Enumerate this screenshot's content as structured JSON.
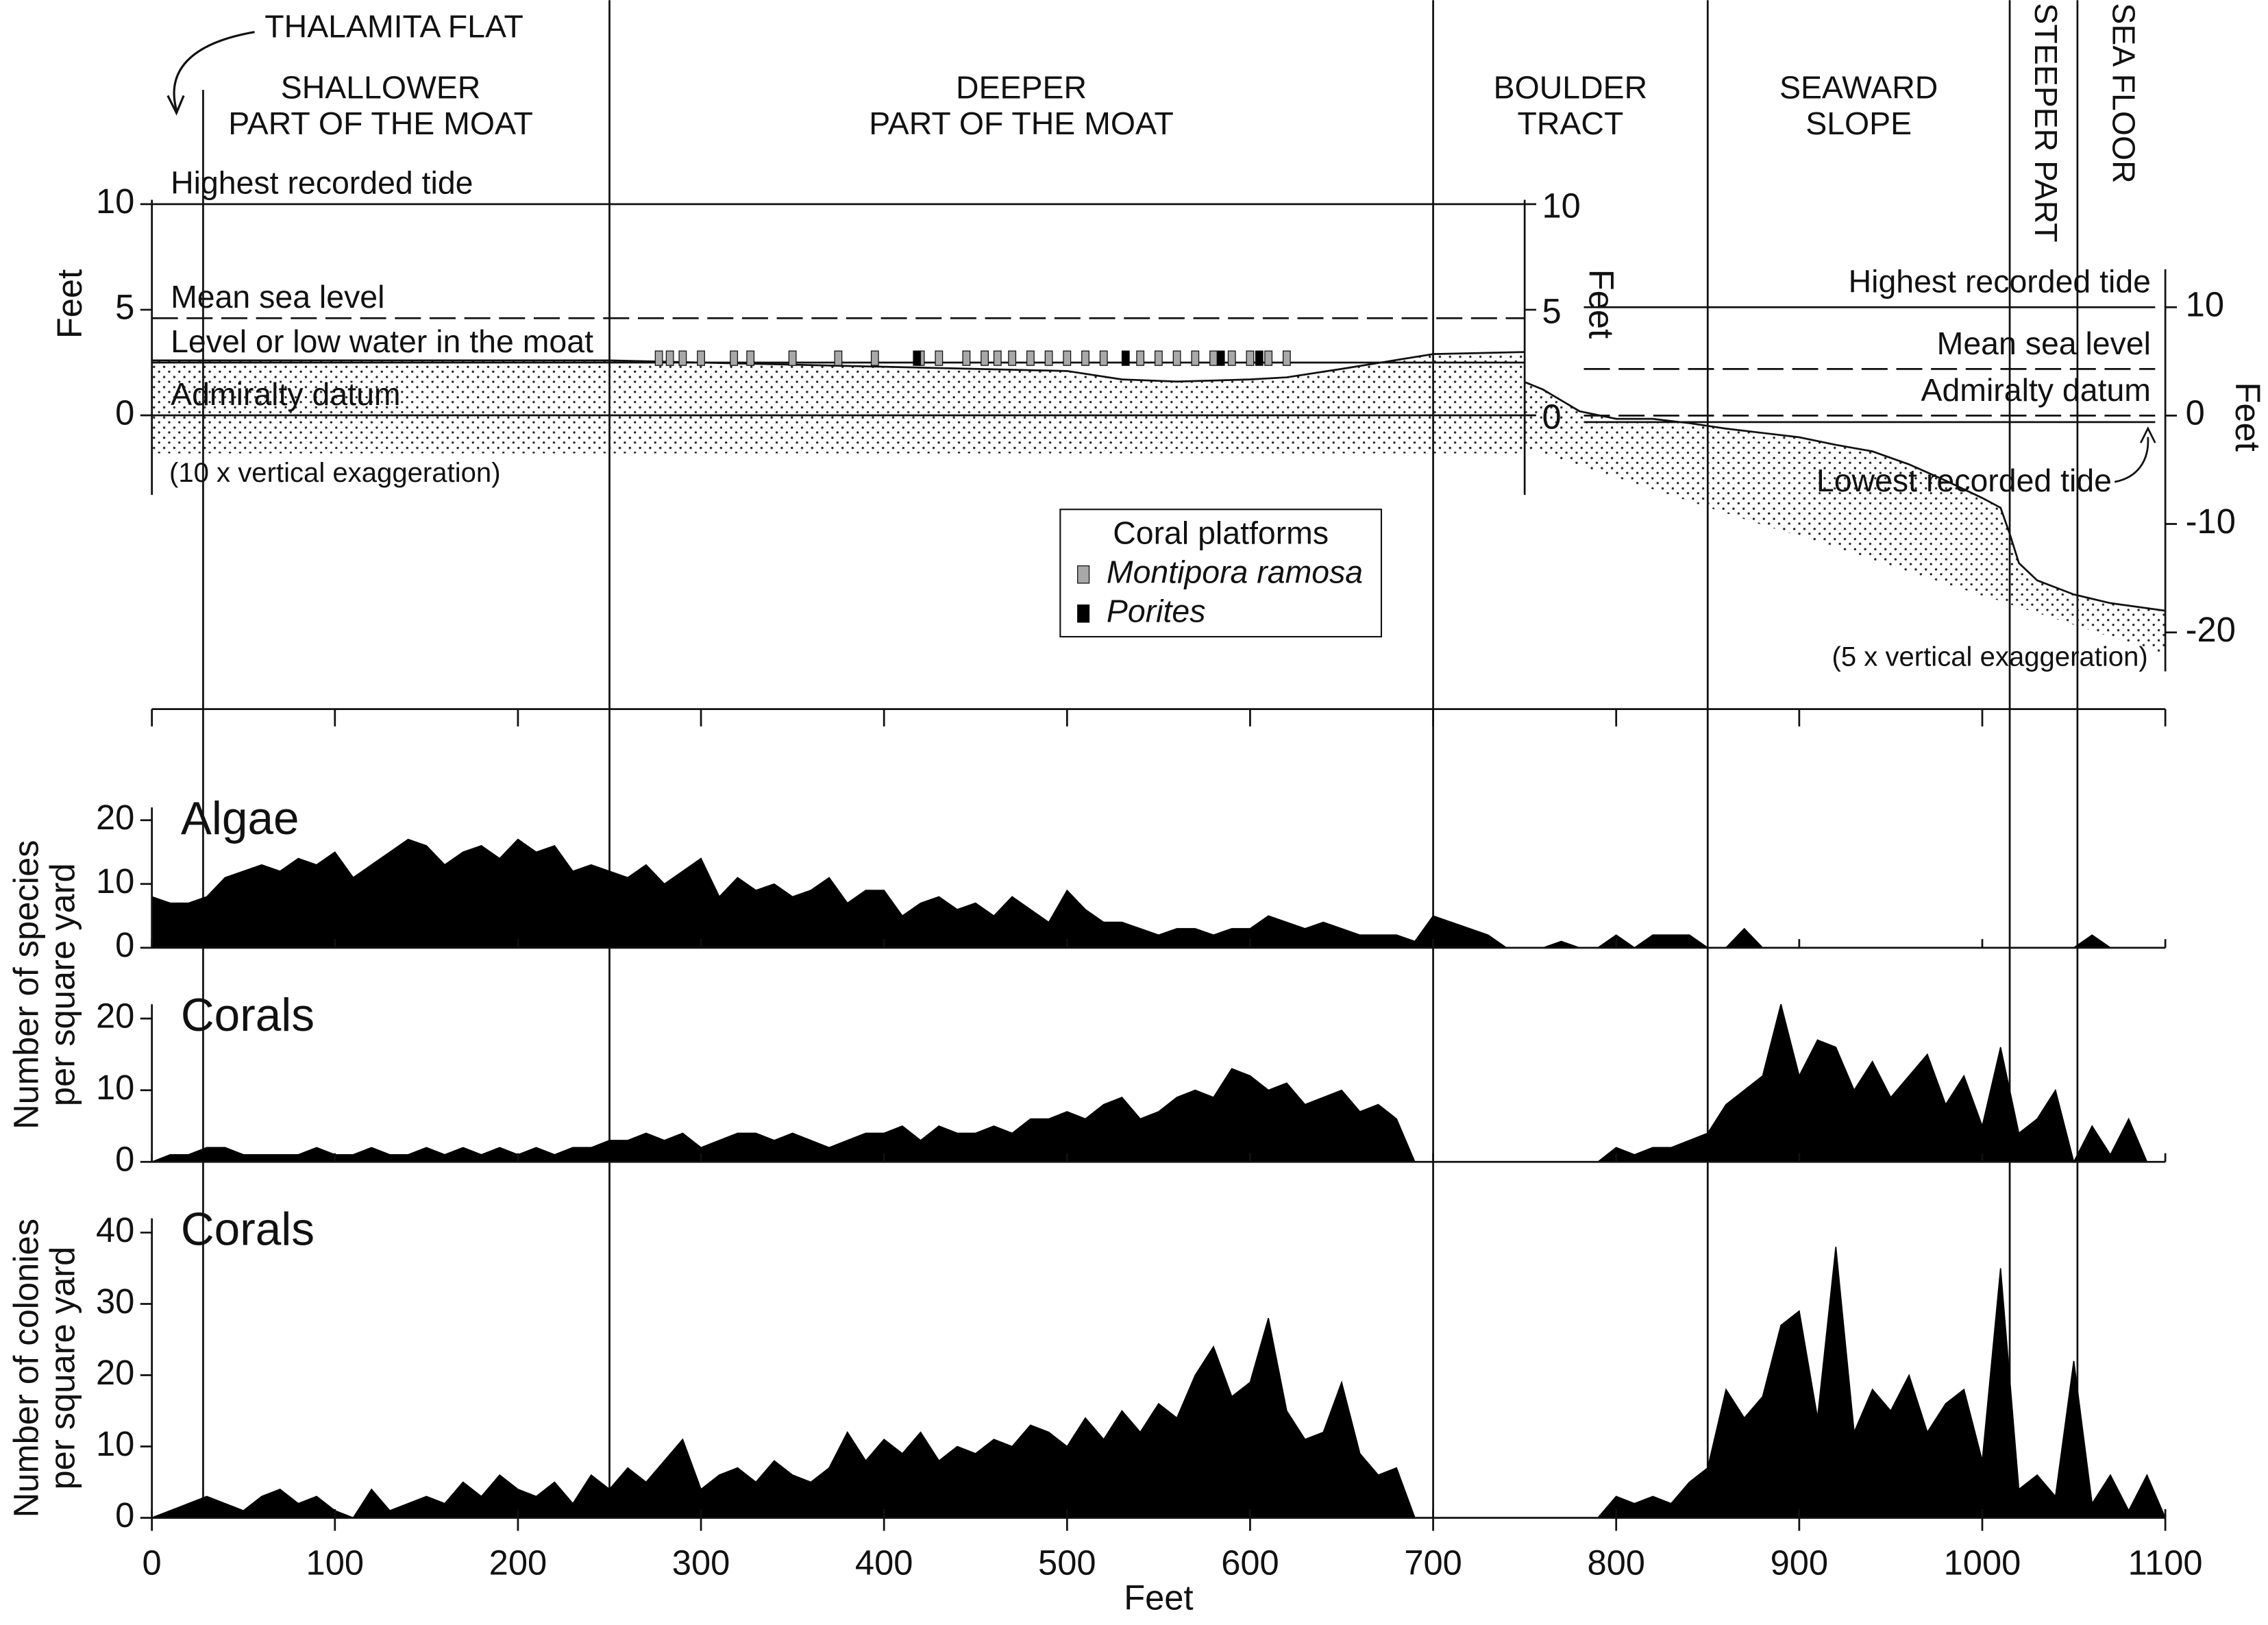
{
  "chart_data": [
    {
      "type": "profile",
      "annotation": "THALAMITA FLAT",
      "thalamita_x": 28,
      "zones": [
        {
          "lines": [
            "SHALLOWER",
            "PART OF THE MOAT"
          ]
        },
        {
          "lines": [
            "DEEPER",
            "PART OF THE MOAT"
          ]
        },
        {
          "lines": [
            "BOULDER",
            "TRACT"
          ]
        },
        {
          "lines": [
            "SEAWARD",
            "SLOPE"
          ]
        },
        {
          "lines": [
            "STEEPER PART"
          ]
        },
        {
          "lines": [
            "SEA FLOOR"
          ]
        }
      ],
      "boundaries": [
        250,
        700,
        850,
        1015,
        1052
      ],
      "xlim": [
        0,
        1100
      ],
      "ylabel": "Feet",
      "ylim": [
        -4,
        10
      ],
      "yticks": [
        0,
        5,
        10
      ],
      "y2label": "Feet",
      "y2lim": [
        -23.6,
        13.5
      ],
      "y2ticks": [
        10,
        0,
        -10,
        -20
      ],
      "exaggeration": "(10 x vertical exaggeration)",
      "exaggeration_y2": "(5 x vertical exaggeration)",
      "levels": [
        {
          "name": "Highest recorded tide",
          "value": 10,
          "dashed": false
        },
        {
          "name": "Mean sea level",
          "value": 4.6,
          "dashed": true
        },
        {
          "name": "Level or low water in the moat",
          "value": 2.5,
          "dashed": false
        },
        {
          "name": "Admiralty datum",
          "value": 0,
          "dashed": false
        }
      ],
      "levels_y2": [
        {
          "name": "Highest recorded tide",
          "value": 10,
          "dashed": false
        },
        {
          "name": "Mean sea level",
          "value": 4.3,
          "dashed": true
        },
        {
          "name": "Admiralty datum",
          "value": 0,
          "dashed": true
        },
        {
          "name": "Lowest recorded tide",
          "value": -0.6,
          "dashed": false
        }
      ],
      "ground": {
        "x": [
          0,
          100,
          200,
          250,
          300,
          400,
          500,
          530,
          560,
          600,
          620,
          650,
          700,
          750
        ],
        "surface": [
          2.6,
          2.6,
          2.6,
          2.6,
          2.5,
          2.3,
          2.1,
          1.7,
          1.6,
          1.7,
          1.8,
          2.2,
          2.9,
          3.0
        ],
        "base": [
          -1.8,
          -1.8,
          -1.8,
          -1.8,
          -1.8,
          -1.8,
          -1.8,
          -1.8,
          -1.8,
          -1.8,
          -1.8,
          -1.8,
          -1.8,
          -1.8
        ]
      },
      "ground_y2": {
        "x": [
          750,
          760,
          780,
          800,
          820,
          840,
          860,
          880,
          900,
          920,
          940,
          960,
          980,
          1000,
          1010,
          1015,
          1020,
          1030,
          1050,
          1070,
          1100
        ],
        "surface": [
          3.1,
          2.4,
          0.4,
          -0.3,
          -0.3,
          -0.7,
          -1.2,
          -1.6,
          -2,
          -2.7,
          -3.3,
          -4.5,
          -6,
          -7.6,
          -8.5,
          -10.9,
          -13.6,
          -15.2,
          -16.5,
          -17.3,
          -18
        ],
        "base": [
          -3,
          -3.5,
          -4.6,
          -5.7,
          -6.8,
          -7.9,
          -9,
          -10.1,
          -11.1,
          -12.2,
          -13.3,
          -14.4,
          -15.5,
          -16.6,
          -17.1,
          -17.4,
          -17.7,
          -18.2,
          -19.3,
          -20.4,
          -22
        ]
      },
      "legend_title": "Coral platforms",
      "platforms": [
        {
          "name": "Montipora ramosa",
          "color": "#a8a8a8",
          "x": [
            277,
            283,
            290,
            300,
            318,
            327,
            350,
            375,
            395,
            420,
            430,
            445,
            455,
            462,
            470,
            480,
            490,
            500,
            510,
            520,
            540,
            550,
            560,
            570,
            580,
            590,
            600,
            610,
            620
          ]
        },
        {
          "name": "Porites",
          "color": "#000000",
          "x": [
            418,
            532,
            584,
            605
          ]
        }
      ]
    },
    {
      "type": "area",
      "x": [
        0,
        10,
        20,
        30,
        40,
        50,
        60,
        70,
        80,
        90,
        100,
        110,
        120,
        130,
        140,
        150,
        160,
        170,
        180,
        190,
        200,
        210,
        220,
        230,
        240,
        250,
        260,
        270,
        280,
        290,
        300,
        310,
        320,
        330,
        340,
        350,
        360,
        370,
        380,
        390,
        400,
        410,
        420,
        430,
        440,
        450,
        460,
        470,
        480,
        490,
        500,
        510,
        520,
        530,
        540,
        550,
        560,
        570,
        580,
        590,
        600,
        610,
        620,
        630,
        640,
        650,
        660,
        670,
        680,
        690,
        700,
        710,
        720,
        730,
        740,
        750,
        760,
        770,
        780,
        790,
        800,
        810,
        820,
        830,
        840,
        850,
        860,
        870,
        880,
        890,
        900,
        910,
        920,
        930,
        940,
        950,
        960,
        970,
        980,
        990,
        1000,
        1010,
        1020,
        1030,
        1040,
        1050,
        1060,
        1070,
        1080,
        1090,
        1100
      ],
      "xlim": [
        0,
        1100
      ],
      "xticks": [
        0,
        100,
        200,
        300,
        400,
        500,
        600,
        700,
        800,
        900,
        1000,
        1100
      ],
      "xlabel": "Feet",
      "ylabels": [
        [
          "Number of species",
          "per square yard"
        ],
        [
          "Number of colonies",
          "per square yard"
        ]
      ],
      "series": [
        {
          "name": "Algae",
          "color": "#000000",
          "ylim": [
            0,
            22
          ],
          "yticks": [
            0,
            10,
            20
          ],
          "values": [
            8,
            7,
            7,
            8,
            11,
            12,
            13,
            12,
            14,
            13,
            15,
            11,
            13,
            15,
            17,
            16,
            13,
            15,
            16,
            14,
            17,
            15,
            16,
            12,
            13,
            12,
            11,
            13,
            10,
            12,
            14,
            8,
            11,
            9,
            10,
            8,
            9,
            11,
            7,
            9,
            9,
            5,
            7,
            8,
            6,
            7,
            5,
            8,
            6,
            4,
            9,
            6,
            4,
            4,
            3,
            2,
            3,
            3,
            2,
            3,
            3,
            5,
            4,
            3,
            4,
            3,
            2,
            2,
            2,
            1,
            5,
            4,
            3,
            2,
            0,
            0,
            0,
            1,
            0,
            0,
            2,
            0,
            2,
            2,
            2,
            0,
            0,
            3,
            0,
            0,
            0,
            0,
            0,
            0,
            0,
            0,
            0,
            0,
            0,
            0,
            0,
            0,
            0,
            0,
            0,
            0,
            2,
            0,
            0,
            0,
            0
          ]
        },
        {
          "name": "Corals",
          "color": "#000000",
          "ylim": [
            0,
            22
          ],
          "yticks": [
            0,
            10,
            20
          ],
          "values": [
            0,
            1,
            1,
            2,
            2,
            1,
            1,
            1,
            1,
            2,
            1,
            1,
            2,
            1,
            1,
            2,
            1,
            2,
            1,
            2,
            1,
            2,
            1,
            2,
            2,
            3,
            3,
            4,
            3,
            4,
            2,
            3,
            4,
            4,
            3,
            4,
            3,
            2,
            3,
            4,
            4,
            5,
            3,
            5,
            4,
            4,
            5,
            4,
            6,
            6,
            7,
            6,
            8,
            9,
            6,
            7,
            9,
            10,
            9,
            13,
            12,
            10,
            11,
            8,
            9,
            10,
            7,
            8,
            6,
            0,
            0,
            0,
            0,
            0,
            0,
            0,
            0,
            0,
            0,
            0,
            2,
            1,
            2,
            2,
            3,
            4,
            8,
            10,
            12,
            22,
            12,
            17,
            16,
            10,
            14,
            9,
            12,
            15,
            8,
            12,
            5,
            16,
            4,
            6,
            10,
            0,
            5,
            1,
            6,
            0,
            0
          ]
        },
        {
          "name": "Corals",
          "color": "#000000",
          "ylim": [
            0,
            42
          ],
          "yticks": [
            0,
            10,
            20,
            30,
            40
          ],
          "values": [
            0,
            1,
            2,
            3,
            2,
            1,
            3,
            4,
            2,
            3,
            1,
            0,
            4,
            1,
            2,
            3,
            2,
            5,
            3,
            6,
            4,
            3,
            5,
            2,
            6,
            4,
            7,
            5,
            8,
            11,
            4,
            6,
            7,
            5,
            8,
            6,
            5,
            7,
            12,
            8,
            11,
            9,
            12,
            8,
            10,
            9,
            11,
            10,
            13,
            12,
            10,
            14,
            11,
            15,
            12,
            16,
            14,
            20,
            24,
            17,
            19,
            28,
            15,
            11,
            12,
            19,
            9,
            6,
            7,
            0,
            0,
            0,
            0,
            0,
            0,
            0,
            0,
            0,
            0,
            0,
            3,
            2,
            3,
            2,
            5,
            7,
            18,
            14,
            17,
            27,
            29,
            14,
            38,
            12,
            18,
            15,
            20,
            12,
            16,
            18,
            8,
            35,
            4,
            6,
            3,
            22,
            2,
            6,
            1,
            6,
            0
          ]
        }
      ]
    }
  ]
}
